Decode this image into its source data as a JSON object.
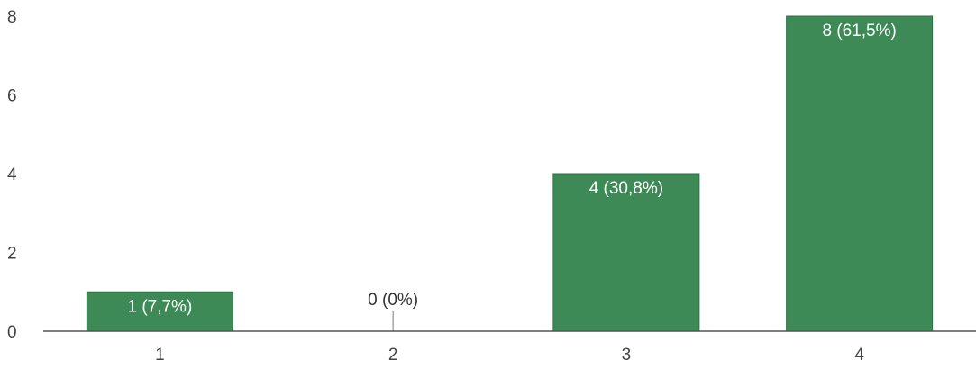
{
  "chart_data": {
    "type": "bar",
    "categories": [
      "1",
      "2",
      "3",
      "4"
    ],
    "values": [
      1,
      0,
      4,
      8
    ],
    "data_labels": [
      "1 (7,7%)",
      "0 (0%)",
      "4 (30,8%)",
      "8 (61,5%)"
    ],
    "y_ticks": [
      "0",
      "2",
      "4",
      "6",
      "8"
    ],
    "ylim": [
      0,
      8
    ],
    "grid": false,
    "bar_color": "#3d8a57",
    "label_color_inside": "#ffffff",
    "label_color_outside": "#333333",
    "axis_color": "#555555"
  }
}
